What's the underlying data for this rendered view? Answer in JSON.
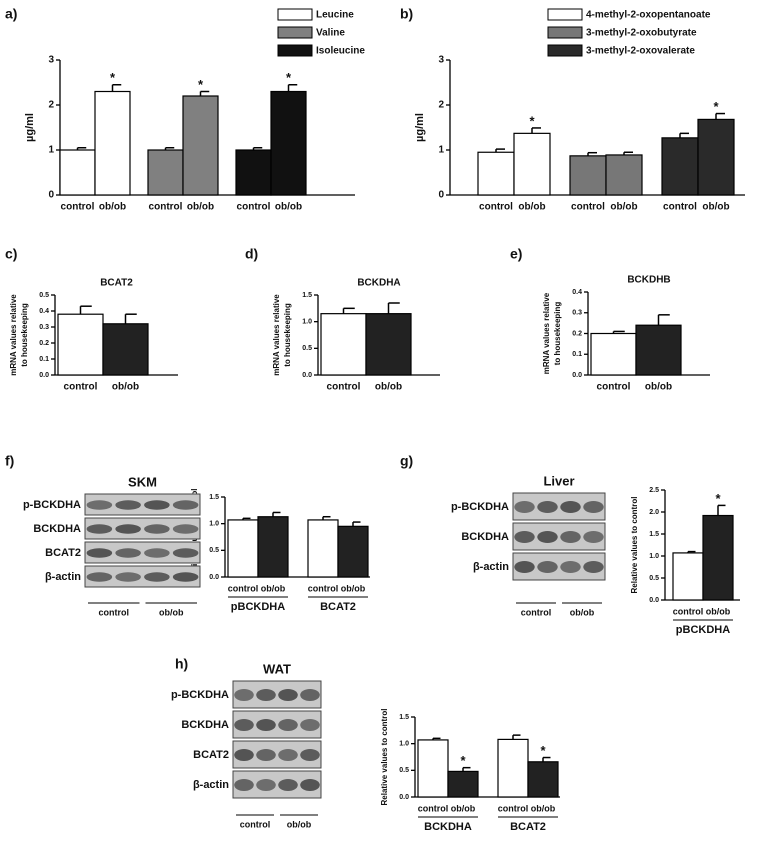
{
  "chart_data": [
    {
      "type": "bar",
      "panel": "a)",
      "ylabel": [
        "µg/ml"
      ],
      "ylim": [
        0,
        3
      ],
      "yticks": [
        0,
        1,
        2,
        3
      ],
      "groups": [
        {
          "name": "Leucine",
          "color": "#ffffff",
          "categories": [
            "control",
            "ob/ob"
          ],
          "values": [
            1.0,
            2.3
          ],
          "errors": [
            0.05,
            0.15
          ],
          "stars": [
            null,
            "*"
          ]
        },
        {
          "name": "Valine",
          "color": "#808080",
          "categories": [
            "control",
            "ob/ob"
          ],
          "values": [
            1.0,
            2.2
          ],
          "errors": [
            0.05,
            0.1
          ],
          "stars": [
            null,
            "*"
          ]
        },
        {
          "name": "Isoleucine",
          "color": "#111111",
          "categories": [
            "control",
            "ob/ob"
          ],
          "values": [
            1.0,
            2.3
          ],
          "errors": [
            0.05,
            0.15
          ],
          "stars": [
            null,
            "*"
          ]
        }
      ]
    },
    {
      "type": "bar",
      "panel": "b)",
      "ylabel": [
        "µg/ml"
      ],
      "ylim": [
        0,
        3
      ],
      "yticks": [
        0,
        1,
        2,
        3
      ],
      "groups": [
        {
          "name": "4-methyl-2-oxopentanoate",
          "color": "#ffffff",
          "categories": [
            "control",
            "ob/ob"
          ],
          "values": [
            0.95,
            1.37
          ],
          "errors": [
            0.07,
            0.12
          ],
          "stars": [
            null,
            "*"
          ]
        },
        {
          "name": "3-methyl-2-oxobutyrate",
          "color": "#777777",
          "categories": [
            "control",
            "ob/ob"
          ],
          "values": [
            0.87,
            0.89
          ],
          "errors": [
            0.07,
            0.06
          ],
          "stars": [
            null,
            null
          ]
        },
        {
          "name": "3-methyl-2-oxovalerate",
          "color": "#2a2a2a",
          "categories": [
            "control",
            "ob/ob"
          ],
          "values": [
            1.27,
            1.68
          ],
          "errors": [
            0.1,
            0.13
          ],
          "stars": [
            null,
            "*"
          ]
        }
      ]
    },
    {
      "type": "bar",
      "panel": "c)",
      "title": "BCAT2",
      "ylabel": [
        "mRNA values relative",
        "to housekeeping"
      ],
      "ylim": [
        0,
        0.5
      ],
      "yticks": [
        {
          "value": 0,
          "label": "0.0"
        },
        0.1,
        0.2,
        0.3,
        0.4,
        0.5
      ],
      "colors": [
        "#ffffff",
        "#222222"
      ],
      "groups": [
        {
          "categories": [
            "control",
            "ob/ob"
          ],
          "values": [
            0.38,
            0.32
          ],
          "errors": [
            0.05,
            0.06
          ],
          "stars": [
            null,
            null
          ]
        }
      ]
    },
    {
      "type": "bar",
      "panel": "d)",
      "title": "BCKDHA",
      "ylabel": [
        "mRNA values relative",
        "to housekeeping"
      ],
      "ylim": [
        0,
        1.5
      ],
      "yticks": [
        {
          "value": 0,
          "label": "0.0"
        },
        0.5,
        {
          "value": 1,
          "label": "1.0"
        },
        1.5
      ],
      "colors": [
        "#ffffff",
        "#222222"
      ],
      "groups": [
        {
          "categories": [
            "control",
            "ob/ob"
          ],
          "values": [
            1.15,
            1.15
          ],
          "errors": [
            0.1,
            0.2
          ],
          "stars": [
            null,
            null
          ]
        }
      ]
    },
    {
      "type": "bar",
      "panel": "e)",
      "title": "BCKDHB",
      "ylabel": [
        "mRNA values relative",
        "to housekeeping"
      ],
      "ylim": [
        0,
        0.4
      ],
      "yticks": [
        {
          "value": 0,
          "label": "0.0"
        },
        0.1,
        0.2,
        0.3,
        0.4
      ],
      "colors": [
        "#ffffff",
        "#222222"
      ],
      "groups": [
        {
          "categories": [
            "control",
            "ob/ob"
          ],
          "values": [
            0.2,
            0.24
          ],
          "errors": [
            0.01,
            0.05
          ],
          "stars": [
            null,
            null
          ]
        }
      ]
    },
    {
      "type": "bar",
      "panel": "f)",
      "ylabel": [
        "Relative values to control"
      ],
      "ylim": [
        0,
        1.5
      ],
      "yticks": [
        {
          "value": 0,
          "label": "0.0"
        },
        0.5,
        {
          "value": 1,
          "label": "1.0"
        },
        1.5
      ],
      "colors": [
        "#ffffff",
        "#222222"
      ],
      "blot": {
        "title": "SKM",
        "rows": [
          "p-BCKDHA",
          "BCKDHA",
          "BCAT2",
          "β-actin"
        ],
        "lanes": [
          "control",
          "ob/ob"
        ]
      },
      "groups": [
        {
          "name": "pBCKDHA",
          "categories": [
            "control",
            "ob/ob"
          ],
          "values": [
            1.07,
            1.13
          ],
          "errors": [
            0.03,
            0.08
          ],
          "stars": [
            null,
            null
          ]
        },
        {
          "name": "BCAT2",
          "categories": [
            "control",
            "ob/ob"
          ],
          "values": [
            1.07,
            0.95
          ],
          "errors": [
            0.06,
            0.08
          ],
          "stars": [
            null,
            null
          ]
        }
      ]
    },
    {
      "type": "bar",
      "panel": "g)",
      "ylabel": [
        "Relative values to control"
      ],
      "ylim": [
        0,
        2.5
      ],
      "yticks": [
        {
          "value": 0,
          "label": "0.0"
        },
        0.5,
        {
          "value": 1,
          "label": "1.0"
        },
        1.5,
        {
          "value": 2,
          "label": "2.0"
        },
        2.5
      ],
      "colors": [
        "#ffffff",
        "#222222"
      ],
      "blot": {
        "title": "Liver",
        "rows": [
          "p-BCKDHA",
          "BCKDHA",
          "β-actin"
        ],
        "lanes": [
          "control",
          "ob/ob"
        ]
      },
      "groups": [
        {
          "name": "pBCKDHA",
          "categories": [
            "control",
            "ob/ob"
          ],
          "values": [
            1.07,
            1.92
          ],
          "errors": [
            0.03,
            0.23
          ],
          "stars": [
            null,
            "*"
          ]
        }
      ]
    },
    {
      "type": "bar",
      "panel": "h)",
      "ylabel": [
        "Relative values to control"
      ],
      "ylim": [
        0,
        1.5
      ],
      "yticks": [
        {
          "value": 0,
          "label": "0.0"
        },
        0.5,
        {
          "value": 1,
          "label": "1.0"
        },
        1.5
      ],
      "colors": [
        "#ffffff",
        "#222222"
      ],
      "blot": {
        "title": "WAT",
        "rows": [
          "p-BCKDHA",
          "BCKDHA",
          "BCAT2",
          "β-actin"
        ],
        "lanes": [
          "control",
          "ob/ob"
        ]
      },
      "groups": [
        {
          "name": "BCKDHA",
          "categories": [
            "control",
            "ob/ob"
          ],
          "values": [
            1.07,
            0.48
          ],
          "errors": [
            0.03,
            0.07
          ],
          "stars": [
            null,
            "*"
          ]
        },
        {
          "name": "BCAT2",
          "categories": [
            "control",
            "ob/ob"
          ],
          "values": [
            1.08,
            0.66
          ],
          "errors": [
            0.08,
            0.08
          ],
          "stars": [
            null,
            "*"
          ]
        }
      ]
    }
  ]
}
